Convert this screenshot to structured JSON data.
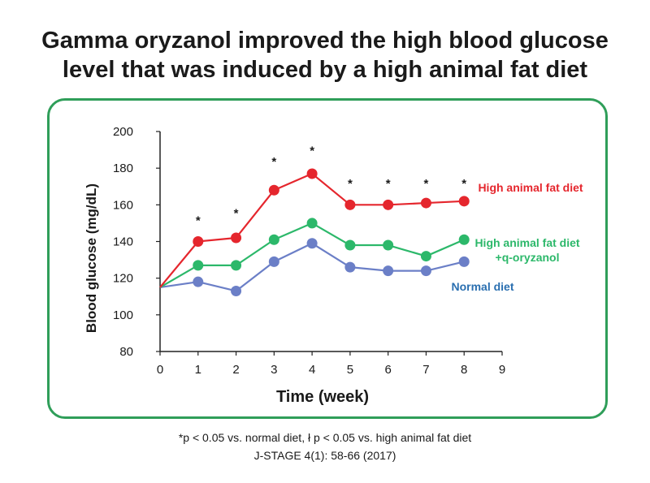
{
  "title_line1": "Gamma oryzanol improved the high blood glucose",
  "title_line2": "level that was induced by a high animal fat diet",
  "footnote_line1": "*p < 0.05 vs. normal diet, ł p < 0.05 vs. high animal fat diet",
  "footnote_line2": "J-STAGE 4(1): 58-66 (2017)",
  "colors": {
    "high_fat": "#e5262d",
    "oryzanol": "#2cb86a",
    "normal": "#6b7fc7",
    "border": "#2f9e59",
    "axis": "#222222"
  },
  "chart_data": {
    "type": "line",
    "title": "",
    "xlabel": "Time (week)",
    "ylabel": "Blood glucose (mg/dL)",
    "xlim": [
      0,
      9
    ],
    "ylim": [
      80,
      200
    ],
    "x_ticks": [
      0,
      1,
      2,
      3,
      4,
      5,
      6,
      7,
      8,
      9
    ],
    "y_ticks": [
      80,
      100,
      120,
      140,
      160,
      180,
      200
    ],
    "grid": false,
    "legend": "right (labels beside lines)",
    "x": [
      0,
      1,
      2,
      3,
      4,
      5,
      6,
      7,
      8
    ],
    "series": [
      {
        "name": "High animal fat diet",
        "color": "#e5262d",
        "values": [
          115,
          140,
          142,
          168,
          177,
          160,
          160,
          161,
          162
        ]
      },
      {
        "name": "High animal fat diet +q-oryzanol",
        "label_lines": [
          "High animal fat diet",
          "+q-oryzanol"
        ],
        "color": "#2cb86a",
        "values": [
          115,
          127,
          127,
          141,
          150,
          138,
          138,
          132,
          141
        ]
      },
      {
        "name": "Normal diet",
        "color": "#6b7fc7",
        "label_color": "#2a6fb0",
        "values": [
          115,
          118,
          113,
          129,
          139,
          126,
          124,
          124,
          129
        ]
      }
    ],
    "annotations": [
      {
        "x": 1,
        "y": 152,
        "text": "*"
      },
      {
        "x": 2,
        "y": 156,
        "text": "*"
      },
      {
        "x": 3,
        "y": 184,
        "text": "*"
      },
      {
        "x": 4,
        "y": 190,
        "text": "*"
      },
      {
        "x": 5,
        "y": 172,
        "text": "*"
      },
      {
        "x": 6,
        "y": 172,
        "text": "*"
      },
      {
        "x": 7,
        "y": 172,
        "text": "*"
      },
      {
        "x": 8,
        "y": 172,
        "text": "*"
      }
    ]
  }
}
